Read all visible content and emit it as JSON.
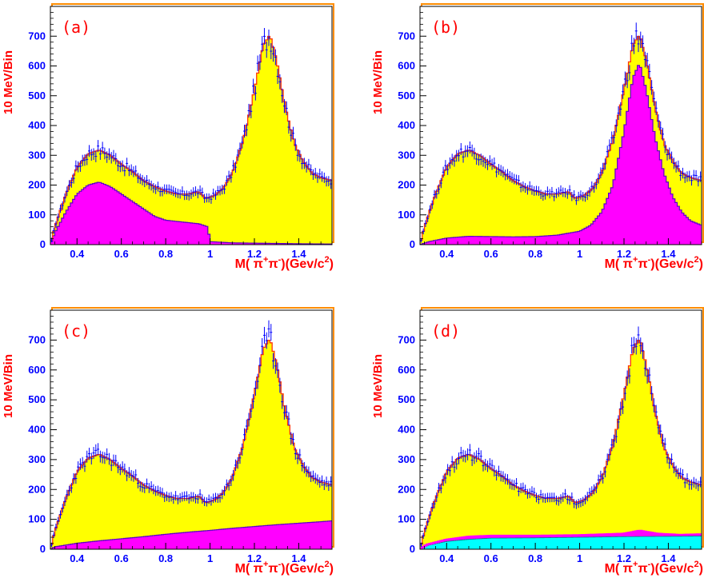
{
  "colors": {
    "total_fill": "#ffff00",
    "total_line": "#ff3300",
    "component_fill": "#ff00ff",
    "component_line": "#5a00c8",
    "background_fill": "#00ffff",
    "data_points": "#0000ff",
    "labels": "#ff0000",
    "frame_shadow": "#ff8c00"
  },
  "chart_data": [
    {
      "panel": "(a)",
      "type": "histogram",
      "ylabel": "10 MeV/Bin",
      "xlabel": "M( π+π-)(Gev/c2)",
      "xlim": [
        0.28,
        1.55
      ],
      "ylim": [
        0,
        800
      ],
      "x_ticks": [
        "0.4",
        "0.6",
        "0.8",
        "1",
        "1.2",
        "1.4"
      ],
      "y_ticks": [
        "0",
        "100",
        "200",
        "300",
        "400",
        "500",
        "600",
        "700"
      ],
      "total_knots": [
        [
          0.28,
          0
        ],
        [
          0.3,
          60
        ],
        [
          0.35,
          170
        ],
        [
          0.4,
          260
        ],
        [
          0.45,
          305
        ],
        [
          0.5,
          318
        ],
        [
          0.55,
          300
        ],
        [
          0.6,
          270
        ],
        [
          0.65,
          245
        ],
        [
          0.7,
          215
        ],
        [
          0.75,
          195
        ],
        [
          0.8,
          180
        ],
        [
          0.85,
          170
        ],
        [
          0.9,
          170
        ],
        [
          0.95,
          178
        ],
        [
          0.98,
          155
        ],
        [
          1.02,
          165
        ],
        [
          1.06,
          190
        ],
        [
          1.1,
          240
        ],
        [
          1.15,
          350
        ],
        [
          1.2,
          520
        ],
        [
          1.24,
          670
        ],
        [
          1.27,
          705
        ],
        [
          1.3,
          620
        ],
        [
          1.34,
          460
        ],
        [
          1.38,
          340
        ],
        [
          1.42,
          280
        ],
        [
          1.46,
          240
        ],
        [
          1.5,
          225
        ],
        [
          1.55,
          215
        ]
      ],
      "component_knots": [
        [
          0.28,
          0
        ],
        [
          0.3,
          40
        ],
        [
          0.35,
          110
        ],
        [
          0.4,
          170
        ],
        [
          0.45,
          200
        ],
        [
          0.5,
          210
        ],
        [
          0.55,
          195
        ],
        [
          0.6,
          170
        ],
        [
          0.65,
          145
        ],
        [
          0.7,
          120
        ],
        [
          0.75,
          95
        ],
        [
          0.8,
          82
        ],
        [
          0.85,
          78
        ],
        [
          0.9,
          74
        ],
        [
          0.95,
          70
        ],
        [
          0.99,
          60
        ],
        [
          1.0,
          10
        ],
        [
          1.1,
          6
        ],
        [
          1.2,
          5
        ],
        [
          1.4,
          3
        ],
        [
          1.55,
          2
        ]
      ],
      "component_type": "magenta"
    },
    {
      "panel": "(b)",
      "type": "histogram",
      "ylabel": "10 MeV/Bin",
      "xlabel": "M( π+π-)(Gev/c2)",
      "xlim": [
        0.28,
        1.55
      ],
      "ylim": [
        0,
        800
      ],
      "x_ticks": [
        "0.4",
        "0.6",
        "0.8",
        "1",
        "1.2",
        "1.4"
      ],
      "y_ticks": [
        "0",
        "100",
        "200",
        "300",
        "400",
        "500",
        "600",
        "700"
      ],
      "total_knots": [
        [
          0.28,
          0
        ],
        [
          0.3,
          60
        ],
        [
          0.35,
          170
        ],
        [
          0.4,
          260
        ],
        [
          0.45,
          305
        ],
        [
          0.5,
          318
        ],
        [
          0.55,
          300
        ],
        [
          0.6,
          270
        ],
        [
          0.65,
          245
        ],
        [
          0.7,
          215
        ],
        [
          0.75,
          195
        ],
        [
          0.8,
          180
        ],
        [
          0.85,
          170
        ],
        [
          0.9,
          170
        ],
        [
          0.95,
          178
        ],
        [
          0.98,
          155
        ],
        [
          1.02,
          165
        ],
        [
          1.06,
          190
        ],
        [
          1.1,
          240
        ],
        [
          1.15,
          350
        ],
        [
          1.2,
          520
        ],
        [
          1.24,
          670
        ],
        [
          1.27,
          705
        ],
        [
          1.3,
          620
        ],
        [
          1.34,
          460
        ],
        [
          1.38,
          340
        ],
        [
          1.42,
          280
        ],
        [
          1.46,
          240
        ],
        [
          1.5,
          225
        ],
        [
          1.55,
          215
        ]
      ],
      "component_knots": [
        [
          0.28,
          0
        ],
        [
          0.32,
          10
        ],
        [
          0.4,
          22
        ],
        [
          0.5,
          28
        ],
        [
          0.6,
          27
        ],
        [
          0.7,
          26
        ],
        [
          0.8,
          27
        ],
        [
          0.9,
          32
        ],
        [
          1.0,
          45
        ],
        [
          1.05,
          65
        ],
        [
          1.1,
          110
        ],
        [
          1.15,
          200
        ],
        [
          1.2,
          380
        ],
        [
          1.24,
          560
        ],
        [
          1.27,
          610
        ],
        [
          1.3,
          520
        ],
        [
          1.34,
          360
        ],
        [
          1.38,
          240
        ],
        [
          1.42,
          160
        ],
        [
          1.46,
          110
        ],
        [
          1.5,
          80
        ],
        [
          1.55,
          65
        ]
      ],
      "component_type": "magenta"
    },
    {
      "panel": "(c)",
      "type": "histogram",
      "ylabel": "10 MeV/Bin",
      "xlabel": "M( π+π-)(Gev/c2)",
      "xlim": [
        0.28,
        1.55
      ],
      "ylim": [
        0,
        800
      ],
      "x_ticks": [
        "0.4",
        "0.6",
        "0.8",
        "1",
        "1.2",
        "1.4"
      ],
      "y_ticks": [
        "0",
        "100",
        "200",
        "300",
        "400",
        "500",
        "600",
        "700"
      ],
      "total_knots": [
        [
          0.28,
          0
        ],
        [
          0.3,
          60
        ],
        [
          0.35,
          170
        ],
        [
          0.4,
          260
        ],
        [
          0.45,
          305
        ],
        [
          0.5,
          318
        ],
        [
          0.55,
          300
        ],
        [
          0.6,
          270
        ],
        [
          0.65,
          245
        ],
        [
          0.7,
          215
        ],
        [
          0.75,
          195
        ],
        [
          0.8,
          180
        ],
        [
          0.85,
          170
        ],
        [
          0.9,
          170
        ],
        [
          0.95,
          178
        ],
        [
          0.98,
          155
        ],
        [
          1.02,
          165
        ],
        [
          1.06,
          190
        ],
        [
          1.1,
          240
        ],
        [
          1.15,
          350
        ],
        [
          1.2,
          520
        ],
        [
          1.24,
          670
        ],
        [
          1.27,
          705
        ],
        [
          1.3,
          620
        ],
        [
          1.34,
          460
        ],
        [
          1.38,
          340
        ],
        [
          1.42,
          280
        ],
        [
          1.46,
          240
        ],
        [
          1.5,
          225
        ],
        [
          1.55,
          215
        ]
      ],
      "component_knots": [
        [
          0.28,
          0
        ],
        [
          0.3,
          8
        ],
        [
          0.4,
          20
        ],
        [
          0.5,
          28
        ],
        [
          0.6,
          35
        ],
        [
          0.7,
          42
        ],
        [
          0.8,
          50
        ],
        [
          0.9,
          57
        ],
        [
          1.0,
          63
        ],
        [
          1.1,
          70
        ],
        [
          1.2,
          76
        ],
        [
          1.3,
          82
        ],
        [
          1.4,
          87
        ],
        [
          1.5,
          92
        ],
        [
          1.55,
          95
        ]
      ],
      "component_type": "magenta"
    },
    {
      "panel": "(d)",
      "type": "histogram",
      "ylabel": "10 MeV/Bin",
      "xlabel": "M( π+π-)(Gev/c2)",
      "xlim": [
        0.28,
        1.55
      ],
      "ylim": [
        0,
        800
      ],
      "x_ticks": [
        "0.4",
        "0.6",
        "0.8",
        "1",
        "1.2",
        "1.4"
      ],
      "y_ticks": [
        "0",
        "100",
        "200",
        "300",
        "400",
        "500",
        "600",
        "700"
      ],
      "total_knots": [
        [
          0.28,
          0
        ],
        [
          0.3,
          60
        ],
        [
          0.35,
          170
        ],
        [
          0.4,
          260
        ],
        [
          0.45,
          305
        ],
        [
          0.5,
          318
        ],
        [
          0.55,
          300
        ],
        [
          0.6,
          270
        ],
        [
          0.65,
          245
        ],
        [
          0.7,
          215
        ],
        [
          0.75,
          195
        ],
        [
          0.8,
          180
        ],
        [
          0.85,
          170
        ],
        [
          0.9,
          170
        ],
        [
          0.95,
          178
        ],
        [
          0.98,
          155
        ],
        [
          1.02,
          165
        ],
        [
          1.06,
          190
        ],
        [
          1.1,
          240
        ],
        [
          1.15,
          350
        ],
        [
          1.2,
          520
        ],
        [
          1.24,
          670
        ],
        [
          1.27,
          705
        ],
        [
          1.3,
          620
        ],
        [
          1.34,
          460
        ],
        [
          1.38,
          340
        ],
        [
          1.42,
          280
        ],
        [
          1.46,
          240
        ],
        [
          1.5,
          225
        ],
        [
          1.55,
          215
        ]
      ],
      "component_knots": [
        [
          0.28,
          0
        ],
        [
          0.31,
          15
        ],
        [
          0.4,
          32
        ],
        [
          0.5,
          42
        ],
        [
          0.6,
          45
        ],
        [
          0.8,
          45
        ],
        [
          1.0,
          47
        ],
        [
          1.2,
          52
        ],
        [
          1.27,
          62
        ],
        [
          1.35,
          52
        ],
        [
          1.45,
          48
        ],
        [
          1.55,
          50
        ]
      ],
      "background_knots": [
        [
          0.28,
          0
        ],
        [
          0.31,
          12
        ],
        [
          0.4,
          26
        ],
        [
          0.5,
          33
        ],
        [
          0.6,
          37
        ],
        [
          0.8,
          38
        ],
        [
          1.0,
          40
        ],
        [
          1.2,
          42
        ],
        [
          1.4,
          43
        ],
        [
          1.55,
          44
        ]
      ],
      "component_type": "magenta+cyan"
    }
  ]
}
